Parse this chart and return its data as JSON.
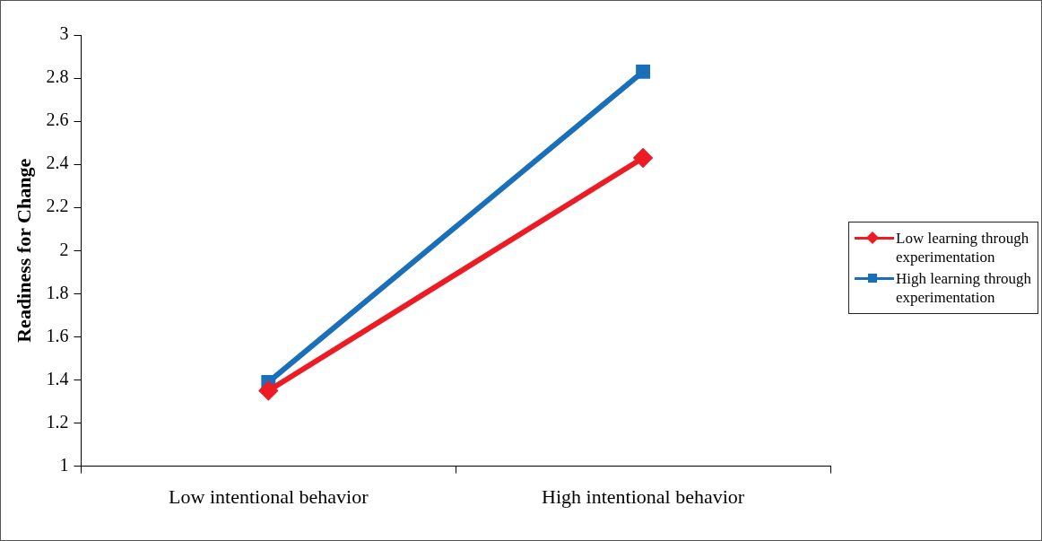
{
  "chart_data": {
    "type": "line",
    "ylabel": "Readiness for Change",
    "categories": [
      "Low intentional behavior",
      "High intentional behavior"
    ],
    "series": [
      {
        "name": "Low learning through experimentation",
        "color": "#ed1c24",
        "values": [
          1.35,
          2.43
        ],
        "marker": "diamond"
      },
      {
        "name": "High learning through experimentation",
        "color": "#1a6fba",
        "values": [
          1.39,
          2.83
        ],
        "marker": "square"
      }
    ],
    "ylim": [
      1,
      3
    ],
    "yticks": [
      1,
      1.2,
      1.4,
      1.6,
      1.8,
      2,
      2.2,
      2.4,
      2.6,
      2.8,
      3
    ],
    "grid": false,
    "legend": "right",
    "line_style": "solid"
  }
}
